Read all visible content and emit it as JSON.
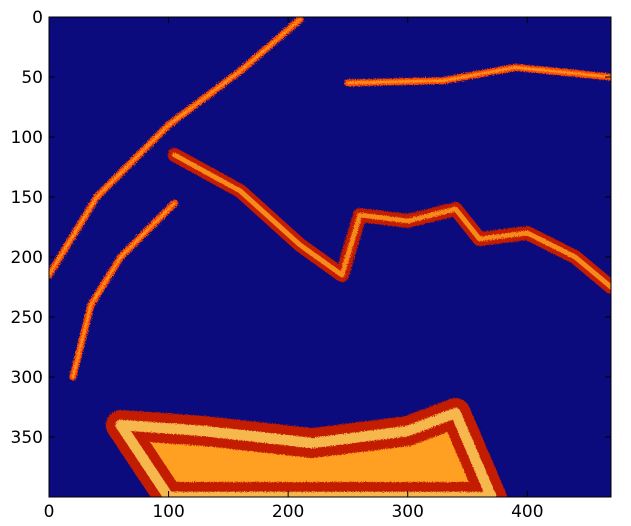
{
  "chart_data": {
    "type": "heatmap",
    "title": "",
    "xlabel": "",
    "ylabel": "",
    "xlim": [
      0,
      470
    ],
    "ylim": [
      400,
      0
    ],
    "x_ticks": [
      0,
      100,
      200,
      300,
      400
    ],
    "y_ticks": [
      0,
      50,
      100,
      150,
      200,
      250,
      300,
      350
    ],
    "colormap": "jet/hot-like: background navy, features red-orange-yellow",
    "colors": {
      "background": "#0b0b7e",
      "low": "#c41a00",
      "mid": "#ff4a00",
      "high": "#ffa020",
      "peak": "#ffd35a"
    },
    "features": [
      {
        "name": "outer arc",
        "points": [
          [
            0,
            215
          ],
          [
            40,
            150
          ],
          [
            100,
            90
          ],
          [
            160,
            45
          ],
          [
            210,
            2
          ]
        ],
        "intensity": "mid"
      },
      {
        "name": "top right streaks",
        "points": [
          [
            250,
            55
          ],
          [
            330,
            53
          ],
          [
            390,
            42
          ],
          [
            470,
            50
          ]
        ],
        "intensity": "mid"
      },
      {
        "name": "central ridge",
        "points": [
          [
            105,
            115
          ],
          [
            160,
            145
          ],
          [
            210,
            190
          ],
          [
            245,
            215
          ],
          [
            260,
            165
          ],
          [
            300,
            170
          ],
          [
            340,
            160
          ],
          [
            360,
            185
          ],
          [
            400,
            180
          ],
          [
            440,
            200
          ],
          [
            470,
            225
          ]
        ],
        "intensity": "high"
      },
      {
        "name": "left boundary",
        "points": [
          [
            20,
            300
          ],
          [
            35,
            240
          ],
          [
            60,
            200
          ],
          [
            105,
            155
          ]
        ],
        "intensity": "mid"
      },
      {
        "name": "bottom mass",
        "points": [
          [
            60,
            340
          ],
          [
            130,
            345
          ],
          [
            220,
            355
          ],
          [
            300,
            345
          ],
          [
            340,
            330
          ],
          [
            370,
            400
          ],
          [
            100,
            400
          ]
        ],
        "intensity": "peak"
      }
    ]
  }
}
